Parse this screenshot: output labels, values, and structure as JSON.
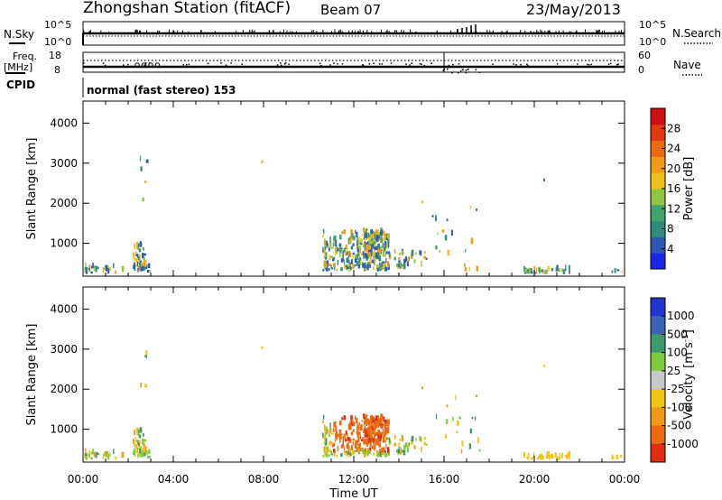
{
  "header": {
    "station": "Zhongshan Station (fitACF)",
    "beam": "Beam 07",
    "date": "23/May/2013"
  },
  "status_panel": {
    "nsky_label": "N.Sky",
    "nsky_ticks": [
      "10^5",
      "10^0"
    ],
    "nsearch_label": "N.Search",
    "nsearch_ticks": [
      "10^5",
      "10^0"
    ],
    "freq_label_1": "Freq.",
    "freq_label_2": "[MHz]",
    "freq_ticks": [
      "18",
      "8"
    ],
    "nave_label": "Nave",
    "nave_ticks": [
      "60",
      "0"
    ],
    "cpid_label": "CPID",
    "cpid_text": "normal (fast stereo) 153"
  },
  "chart_data": [
    {
      "type": "heatmap",
      "quantity": "power",
      "ylabel": "Slant Range [km]",
      "yticks": [
        1000,
        2000,
        3000,
        4000
      ],
      "ylim": [
        180,
        4550
      ],
      "xlim_hours": [
        0,
        24
      ],
      "colorbar": {
        "label": "Power [dB]",
        "range": [
          0,
          32
        ],
        "ticks": [
          "4",
          "8",
          "12",
          "16",
          "20",
          "24",
          "28"
        ],
        "colors": [
          "#1a28e6",
          "#2f58b4",
          "#2e8a7c",
          "#41a36a",
          "#8ec63f",
          "#f0c020",
          "#f09a18",
          "#ea6a12",
          "#e23a10",
          "#cc1010"
        ]
      }
    },
    {
      "type": "heatmap",
      "quantity": "velocity",
      "ylabel": "Slant Range [km]",
      "yticks": [
        1000,
        2000,
        3000,
        4000
      ],
      "ylim": [
        180,
        4550
      ],
      "xlim_hours": [
        0,
        24
      ],
      "xlabel": "Time UT",
      "xtick_labels": [
        "00:00",
        "04:00",
        "08:00",
        "12:00",
        "16:00",
        "20:00",
        "00:00"
      ],
      "colorbar": {
        "label": "Velocity",
        "unit_prefix": "[m s",
        "unit_sup": "-1",
        "unit_suffix": "]",
        "ticks": [
          "1000",
          "500",
          "100",
          "25",
          "-25",
          "-100",
          "-500",
          "-1000"
        ],
        "colors": [
          "#2034d0",
          "#3a64b4",
          "#3e9a6a",
          "#7ccc3c",
          "#c8c8c8",
          "#f2c418",
          "#f09a18",
          "#ea6a12",
          "#e02c10"
        ]
      }
    }
  ]
}
